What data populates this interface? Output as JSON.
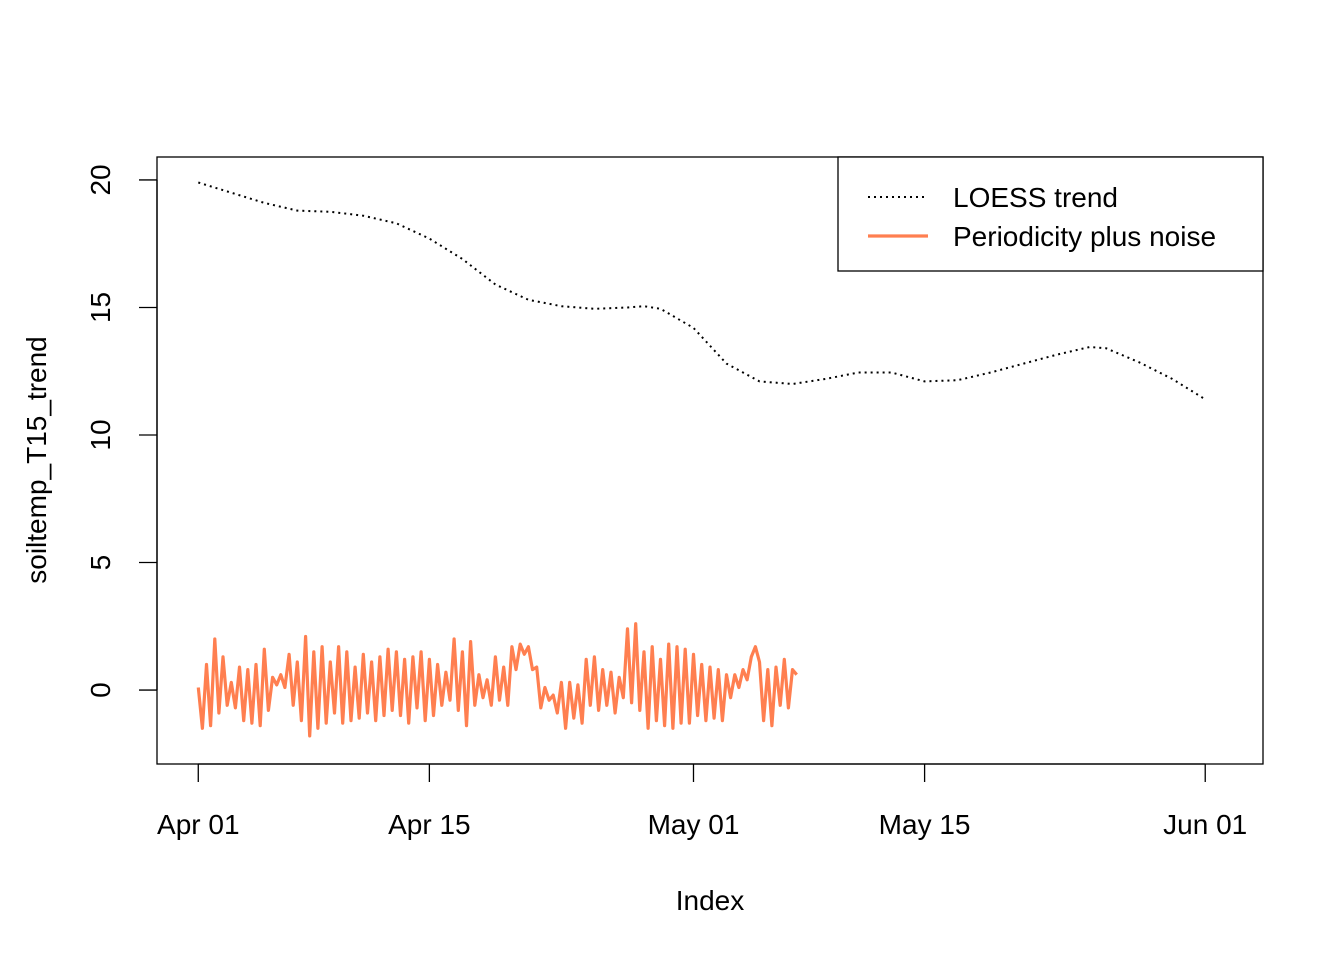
{
  "chart_data": {
    "type": "line",
    "title": "",
    "xlabel": "Index",
    "ylabel": "soiltemp_T15_trend",
    "x_range": [
      "2021-03-30",
      "2021-06-03"
    ],
    "xlim": [
      "2021-03-29T12:00",
      "2021-06-04T12:00"
    ],
    "ylim": [
      -2.9,
      20.9
    ],
    "x_ticks": [
      {
        "date": "2021-04-01",
        "label": "Apr 01"
      },
      {
        "date": "2021-04-15",
        "label": "Apr 15"
      },
      {
        "date": "2021-05-01",
        "label": "May 01"
      },
      {
        "date": "2021-05-15",
        "label": "May 15"
      },
      {
        "date": "2021-06-01",
        "label": "Jun 01"
      }
    ],
    "y_ticks": [
      0,
      5,
      10,
      15,
      20
    ],
    "grid": false,
    "legend": {
      "position": "top-right",
      "entries": [
        {
          "label": "LOESS trend",
          "style": "dotted",
          "color": "#000000"
        },
        {
          "label": "Periodicity plus noise",
          "style": "solid",
          "color": "#FF7F50"
        }
      ]
    },
    "series": [
      {
        "name": "LOESS trend",
        "color": "#000000",
        "style": "dotted",
        "points": [
          [
            "2021-04-01",
            19.9
          ],
          [
            "2021-04-03",
            19.5
          ],
          [
            "2021-04-05",
            19.1
          ],
          [
            "2021-04-07",
            18.8
          ],
          [
            "2021-04-09",
            18.75
          ],
          [
            "2021-04-11",
            18.6
          ],
          [
            "2021-04-13",
            18.3
          ],
          [
            "2021-04-15",
            17.7
          ],
          [
            "2021-04-17",
            16.9
          ],
          [
            "2021-04-19",
            15.9
          ],
          [
            "2021-04-21",
            15.3
          ],
          [
            "2021-04-23",
            15.05
          ],
          [
            "2021-04-25",
            14.95
          ],
          [
            "2021-04-27",
            15.0
          ],
          [
            "2021-04-28",
            15.05
          ],
          [
            "2021-04-29",
            14.95
          ],
          [
            "2021-05-01",
            14.2
          ],
          [
            "2021-05-03",
            12.8
          ],
          [
            "2021-05-05",
            12.1
          ],
          [
            "2021-05-07",
            12.0
          ],
          [
            "2021-05-09",
            12.2
          ],
          [
            "2021-05-11",
            12.45
          ],
          [
            "2021-05-13",
            12.45
          ],
          [
            "2021-05-15",
            12.1
          ],
          [
            "2021-05-17",
            12.15
          ],
          [
            "2021-05-19",
            12.45
          ],
          [
            "2021-05-21",
            12.8
          ],
          [
            "2021-05-23",
            13.15
          ],
          [
            "2021-05-25",
            13.45
          ],
          [
            "2021-05-26",
            13.4
          ],
          [
            "2021-05-28",
            12.85
          ],
          [
            "2021-05-30",
            12.2
          ],
          [
            "2021-06-01",
            11.4
          ]
        ]
      },
      {
        "name": "Periodicity plus noise",
        "color": "#FF7F50",
        "style": "solid",
        "start": "2021-04-01",
        "step_days": 0.25,
        "values": [
          0.1,
          -1.5,
          1.0,
          -1.4,
          2.0,
          -0.9,
          1.3,
          -0.6,
          0.3,
          -0.7,
          0.9,
          -1.2,
          0.8,
          -1.3,
          1.0,
          -1.4,
          1.6,
          -0.8,
          0.5,
          0.2,
          0.6,
          0.1,
          1.4,
          -0.6,
          1.1,
          -1.2,
          2.1,
          -1.8,
          1.5,
          -1.5,
          1.7,
          -1.3,
          1.1,
          -0.9,
          1.7,
          -1.3,
          1.5,
          -1.2,
          0.9,
          -1.1,
          1.4,
          -0.9,
          1.1,
          -1.2,
          1.3,
          -1.0,
          1.6,
          -0.8,
          1.5,
          -1.0,
          1.2,
          -1.3,
          1.3,
          -0.7,
          1.5,
          -1.2,
          1.2,
          -1.0,
          1.0,
          -0.6,
          0.7,
          -0.4,
          2.0,
          -0.8,
          1.5,
          -1.4,
          1.9,
          -0.6,
          0.6,
          -0.3,
          0.4,
          -0.6,
          1.3,
          -0.4,
          0.9,
          -0.6,
          1.7,
          0.8,
          1.8,
          1.4,
          1.7,
          0.8,
          0.9,
          -0.7,
          0.1,
          -0.4,
          -0.2,
          -0.9,
          0.3,
          -1.5,
          0.3,
          -1.1,
          0.2,
          -1.3,
          1.2,
          -0.6,
          1.3,
          -0.8,
          0.8,
          -0.6,
          0.7,
          -0.9,
          0.5,
          -0.3,
          2.4,
          -0.5,
          2.6,
          -0.8,
          1.5,
          -1.5,
          1.7,
          -1.2,
          1.2,
          -1.4,
          1.8,
          -1.5,
          1.7,
          -1.3,
          1.6,
          -1.3,
          1.4,
          -1.0,
          1.0,
          -1.2,
          0.9,
          -1.1,
          0.8,
          -1.2,
          0.6,
          -0.3,
          0.6,
          0.1,
          0.8,
          0.4,
          1.3,
          1.7,
          1.1,
          -1.2,
          0.8,
          -1.4,
          0.9,
          -0.6,
          1.2,
          -0.7,
          0.8,
          0.6
        ]
      }
    ]
  }
}
